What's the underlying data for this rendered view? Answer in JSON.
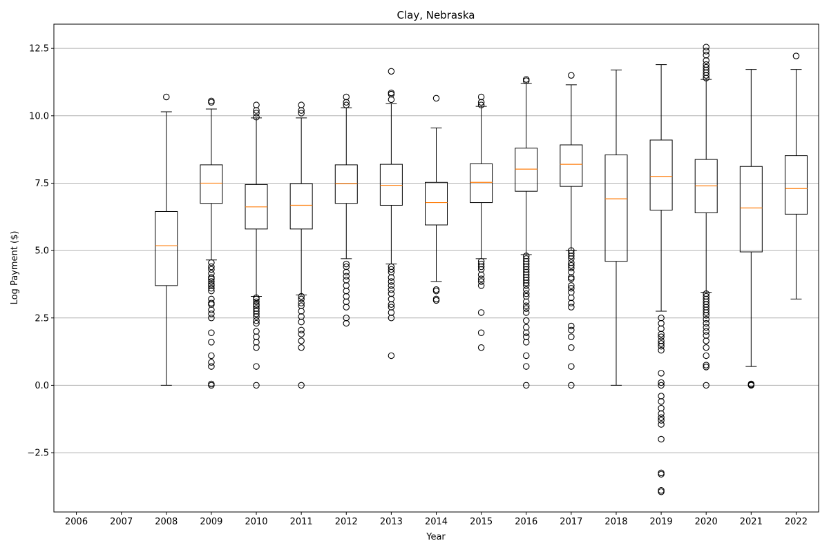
{
  "chart_data": {
    "type": "box",
    "title": "Clay, Nebraska",
    "xlabel": "Year",
    "ylabel": "Log Payment ($)",
    "categories": [
      "2006",
      "2007",
      "2008",
      "2009",
      "2010",
      "2011",
      "2012",
      "2013",
      "2014",
      "2015",
      "2016",
      "2017",
      "2018",
      "2019",
      "2020",
      "2021",
      "2022"
    ],
    "ylim": [
      -4.7,
      13.4
    ],
    "yticks": [
      -2.5,
      0.0,
      2.5,
      5.0,
      7.5,
      10.0,
      12.5
    ],
    "ytick_labels": [
      "−2.5",
      "0.0",
      "2.5",
      "5.0",
      "7.5",
      "10.0",
      "12.5"
    ],
    "grid": "y-major",
    "colors": {
      "box": "#000000",
      "median": "#ff7f0e",
      "grid": "#b0b0b0"
    },
    "boxes": [
      null,
      null,
      {
        "whislo": 0.0,
        "q1": 3.7,
        "med": 5.18,
        "q3": 6.45,
        "whishi": 10.15,
        "fliers": [
          10.7
        ]
      },
      {
        "whislo": 4.65,
        "q1": 6.75,
        "med": 7.5,
        "q3": 8.18,
        "whishi": 10.25,
        "fliers": [
          10.5,
          10.55,
          4.55,
          4.4,
          4.3,
          4.15,
          4.0,
          3.95,
          3.85,
          3.75,
          3.7,
          3.6,
          3.5,
          3.2,
          3.05,
          3.0,
          2.8,
          2.65,
          2.5,
          1.95,
          1.6,
          1.1,
          0.85,
          0.7,
          0.05,
          0.0
        ]
      },
      {
        "whislo": 3.3,
        "q1": 5.8,
        "med": 6.62,
        "q3": 7.45,
        "whishi": 9.92,
        "fliers": [
          10.4,
          10.2,
          10.1,
          9.95,
          3.25,
          3.2,
          3.1,
          3.0,
          2.95,
          2.85,
          2.75,
          2.65,
          2.55,
          2.4,
          2.3,
          2.0,
          1.8,
          1.6,
          1.4,
          0.7,
          0.0
        ]
      },
      {
        "whislo": 3.35,
        "q1": 5.8,
        "med": 6.68,
        "q3": 7.48,
        "whishi": 9.92,
        "fliers": [
          10.4,
          10.2,
          10.1,
          3.3,
          3.2,
          3.05,
          2.95,
          2.75,
          2.55,
          2.35,
          2.05,
          1.9,
          1.65,
          1.4,
          0.0
        ]
      },
      {
        "whislo": 4.7,
        "q1": 6.75,
        "med": 7.48,
        "q3": 8.18,
        "whishi": 10.3,
        "fliers": [
          10.7,
          10.5,
          10.4,
          4.5,
          4.4,
          4.2,
          4.05,
          3.9,
          3.7,
          3.5,
          3.3,
          3.1,
          2.9,
          2.5,
          2.3
        ]
      },
      {
        "whislo": 4.5,
        "q1": 6.68,
        "med": 7.42,
        "q3": 8.2,
        "whishi": 10.45,
        "fliers": [
          11.65,
          10.85,
          10.8,
          10.6,
          4.4,
          4.3,
          4.2,
          4.0,
          3.85,
          3.7,
          3.55,
          3.4,
          3.2,
          3.0,
          2.9,
          2.7,
          2.5,
          1.1
        ]
      },
      {
        "whislo": 3.85,
        "q1": 5.95,
        "med": 6.78,
        "q3": 7.53,
        "whishi": 9.55,
        "fliers": [
          10.65,
          3.55,
          3.5,
          3.2,
          3.15
        ]
      },
      {
        "whislo": 4.7,
        "q1": 6.78,
        "med": 7.53,
        "q3": 8.22,
        "whishi": 10.35,
        "fliers": [
          10.7,
          10.5,
          10.4,
          4.6,
          4.5,
          4.4,
          4.3,
          4.1,
          3.95,
          3.85,
          3.7,
          2.7,
          1.95,
          1.4
        ]
      },
      {
        "whislo": 4.85,
        "q1": 7.2,
        "med": 8.02,
        "q3": 8.8,
        "whishi": 11.2,
        "fliers": [
          11.35,
          11.3,
          4.8,
          4.7,
          4.6,
          4.5,
          4.4,
          4.3,
          4.2,
          4.1,
          4.0,
          3.9,
          3.8,
          3.7,
          3.55,
          3.4,
          3.3,
          3.1,
          2.95,
          2.85,
          2.7,
          2.4,
          2.15,
          1.95,
          1.8,
          1.6,
          1.1,
          0.7,
          0.0
        ]
      },
      {
        "whislo": 5.0,
        "q1": 7.38,
        "med": 8.2,
        "q3": 8.92,
        "whishi": 11.15,
        "fliers": [
          11.5,
          5.0,
          4.9,
          4.8,
          4.7,
          4.55,
          4.45,
          4.35,
          4.2,
          4.0,
          3.95,
          3.7,
          3.6,
          3.45,
          3.25,
          3.05,
          2.9,
          2.2,
          2.05,
          1.8,
          1.4,
          0.7,
          0.0
        ]
      },
      {
        "whislo": 0.0,
        "q1": 4.6,
        "med": 6.92,
        "q3": 8.55,
        "whishi": 11.7,
        "fliers": []
      },
      {
        "whislo": 2.75,
        "q1": 6.5,
        "med": 7.75,
        "q3": 9.1,
        "whishi": 11.9,
        "fliers": [
          2.5,
          2.3,
          2.1,
          1.9,
          1.8,
          1.65,
          1.55,
          1.45,
          1.3,
          0.45,
          0.1,
          0.0,
          -0.4,
          -0.6,
          -0.85,
          -1.05,
          -1.2,
          -1.3,
          -1.45,
          -2.0,
          -3.25,
          -3.3,
          -3.9,
          -3.95
        ]
      },
      {
        "whislo": 3.45,
        "q1": 6.4,
        "med": 7.4,
        "q3": 8.38,
        "whishi": 11.35,
        "fliers": [
          12.55,
          12.4,
          12.25,
          12.05,
          11.9,
          11.8,
          11.7,
          11.6,
          11.5,
          11.4,
          3.4,
          3.3,
          3.2,
          3.1,
          3.0,
          2.9,
          2.8,
          2.7,
          2.6,
          2.45,
          2.3,
          2.15,
          2.0,
          1.85,
          1.65,
          1.4,
          1.1,
          0.75,
          0.68,
          0.0
        ]
      },
      {
        "whislo": 0.7,
        "q1": 4.95,
        "med": 6.58,
        "q3": 8.12,
        "whishi": 11.72,
        "fliers": [
          0.05,
          0.02,
          0.0
        ]
      },
      {
        "whislo": 3.2,
        "q1": 6.35,
        "med": 7.3,
        "q3": 8.52,
        "whishi": 11.72,
        "fliers": [
          12.22
        ]
      }
    ]
  }
}
